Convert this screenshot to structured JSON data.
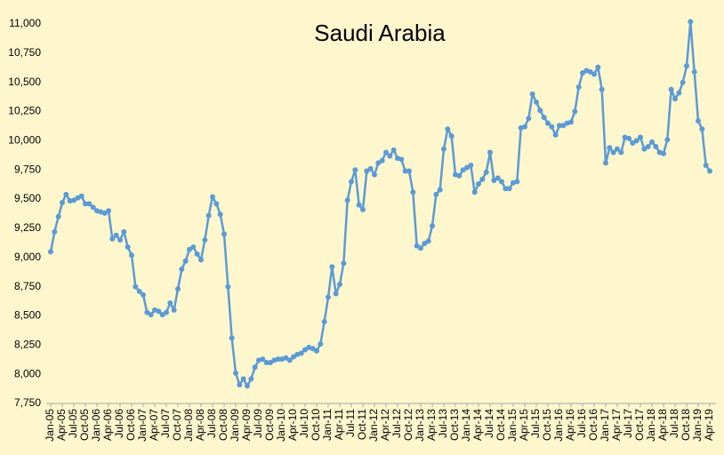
{
  "chart_data": {
    "type": "line",
    "title": "Saudi Arabia",
    "color": "#5b9bd5",
    "categories": [
      "Jan-05",
      null,
      null,
      "Apr-05",
      null,
      null,
      "Jul-05",
      null,
      null,
      "Oct-05",
      null,
      null,
      "Jan-06",
      null,
      null,
      "Apr-06",
      null,
      null,
      "Jul-06",
      null,
      null,
      "Oct-06",
      null,
      null,
      "Jan-07",
      null,
      null,
      "Apr-07",
      null,
      null,
      "Jul-07",
      null,
      null,
      "Oct-07",
      null,
      null,
      "Jan-08",
      null,
      null,
      "Apr-08",
      null,
      null,
      "Jul-08",
      null,
      null,
      "Oct-08",
      null,
      null,
      "Jan-09",
      null,
      null,
      "Apr-09",
      null,
      null,
      "Jul-09",
      null,
      null,
      "Oct-09",
      null,
      null,
      "Jan-10",
      null,
      null,
      "Apr-10",
      null,
      null,
      "Jul-10",
      null,
      null,
      "Oct-10",
      null,
      null,
      "Jan-11",
      null,
      null,
      "Apr-11",
      null,
      null,
      "Jul-11",
      null,
      null,
      "Oct-11",
      null,
      null,
      "Jan-12",
      null,
      null,
      "Apr-12",
      null,
      null,
      "Jul-12",
      null,
      null,
      "Oct-12",
      null,
      null,
      "Jan-13",
      null,
      null,
      "Apr-13",
      null,
      null,
      "Jul-13",
      null,
      null,
      "Oct-13",
      null,
      null,
      "Jan-14",
      null,
      null,
      "Apr-14",
      null,
      null,
      "Jul-14",
      null,
      null,
      "Oct-14",
      null,
      null,
      "Jan-15",
      null,
      null,
      "Apr-15",
      null,
      null,
      "Jul-15",
      null,
      null,
      "Oct-15",
      null,
      null,
      "Jan-16",
      null,
      null,
      "Apr-16",
      null,
      null,
      "Jul-16",
      null,
      null,
      "Oct-16",
      null,
      null,
      "Jan-17",
      null,
      null,
      "Apr-17",
      null,
      null,
      "Jul-17",
      null,
      null,
      "Oct-17",
      null,
      null,
      "Jan-18",
      null,
      null,
      "Apr-18",
      null,
      null,
      "Jul-18",
      null,
      null,
      "Oct-18",
      null,
      null,
      "Jan-19",
      null,
      null,
      "Apr-19"
    ],
    "values": [
      9050,
      9220,
      9350,
      9470,
      9540,
      9485,
      9490,
      9510,
      9525,
      9460,
      9460,
      9430,
      9400,
      9390,
      9380,
      9400,
      9160,
      9190,
      9150,
      9220,
      9090,
      9020,
      8750,
      8710,
      8680,
      8530,
      8510,
      8550,
      8540,
      8510,
      8530,
      8610,
      8550,
      8730,
      8900,
      8970,
      9070,
      9090,
      9030,
      8980,
      9150,
      9360,
      9520,
      9460,
      9370,
      9200,
      8750,
      8310,
      8010,
      7910,
      7960,
      7900,
      7960,
      8060,
      8120,
      8130,
      8100,
      8100,
      8120,
      8130,
      8130,
      8140,
      8120,
      8150,
      8170,
      8180,
      8210,
      8230,
      8220,
      8200,
      8260,
      8450,
      8660,
      8920,
      8690,
      8770,
      8950,
      9490,
      9650,
      9750,
      9450,
      9410,
      9740,
      9760,
      9710,
      9810,
      9830,
      9900,
      9870,
      9920,
      9850,
      9840,
      9740,
      9740,
      9560,
      9100,
      9080,
      9120,
      9140,
      9270,
      9540,
      9580,
      9930,
      10100,
      10040,
      9710,
      9700,
      9750,
      9770,
      9790,
      9560,
      9630,
      9670,
      9730,
      9900,
      9660,
      9680,
      9650,
      9590,
      9590,
      9640,
      9650,
      10110,
      10120,
      10190,
      10400,
      10330,
      10260,
      10200,
      10150,
      10120,
      10050,
      10130,
      10130,
      10150,
      10160,
      10250,
      10460,
      10580,
      10600,
      10590,
      10570,
      10630,
      10440,
      9810,
      9940,
      9900,
      9930,
      9900,
      10030,
      10020,
      9980,
      10000,
      10030,
      9930,
      9950,
      9990,
      9950,
      9900,
      9890,
      10010,
      10440,
      10360,
      10410,
      10500,
      10640,
      11020,
      10590,
      10170,
      10100,
      9790,
      9740
    ],
    "ylim": [
      7750,
      11000
    ],
    "yticks": [
      {
        "value": 7750,
        "label": "7,750"
      },
      {
        "value": 8000,
        "label": "8,000"
      },
      {
        "value": 8250,
        "label": "8,250"
      },
      {
        "value": 8500,
        "label": "8,500"
      },
      {
        "value": 8750,
        "label": "8,750"
      },
      {
        "value": 9000,
        "label": "9,000"
      },
      {
        "value": 9250,
        "label": "9,250"
      },
      {
        "value": 9500,
        "label": "9,500"
      },
      {
        "value": 9750,
        "label": "9,750"
      },
      {
        "value": 10000,
        "label": "10,000"
      },
      {
        "value": 10250,
        "label": "10,250"
      },
      {
        "value": 10500,
        "label": "10,500"
      },
      {
        "value": 10750,
        "label": "10,750"
      },
      {
        "value": 11000,
        "label": "11,000"
      }
    ],
    "grid": false
  }
}
